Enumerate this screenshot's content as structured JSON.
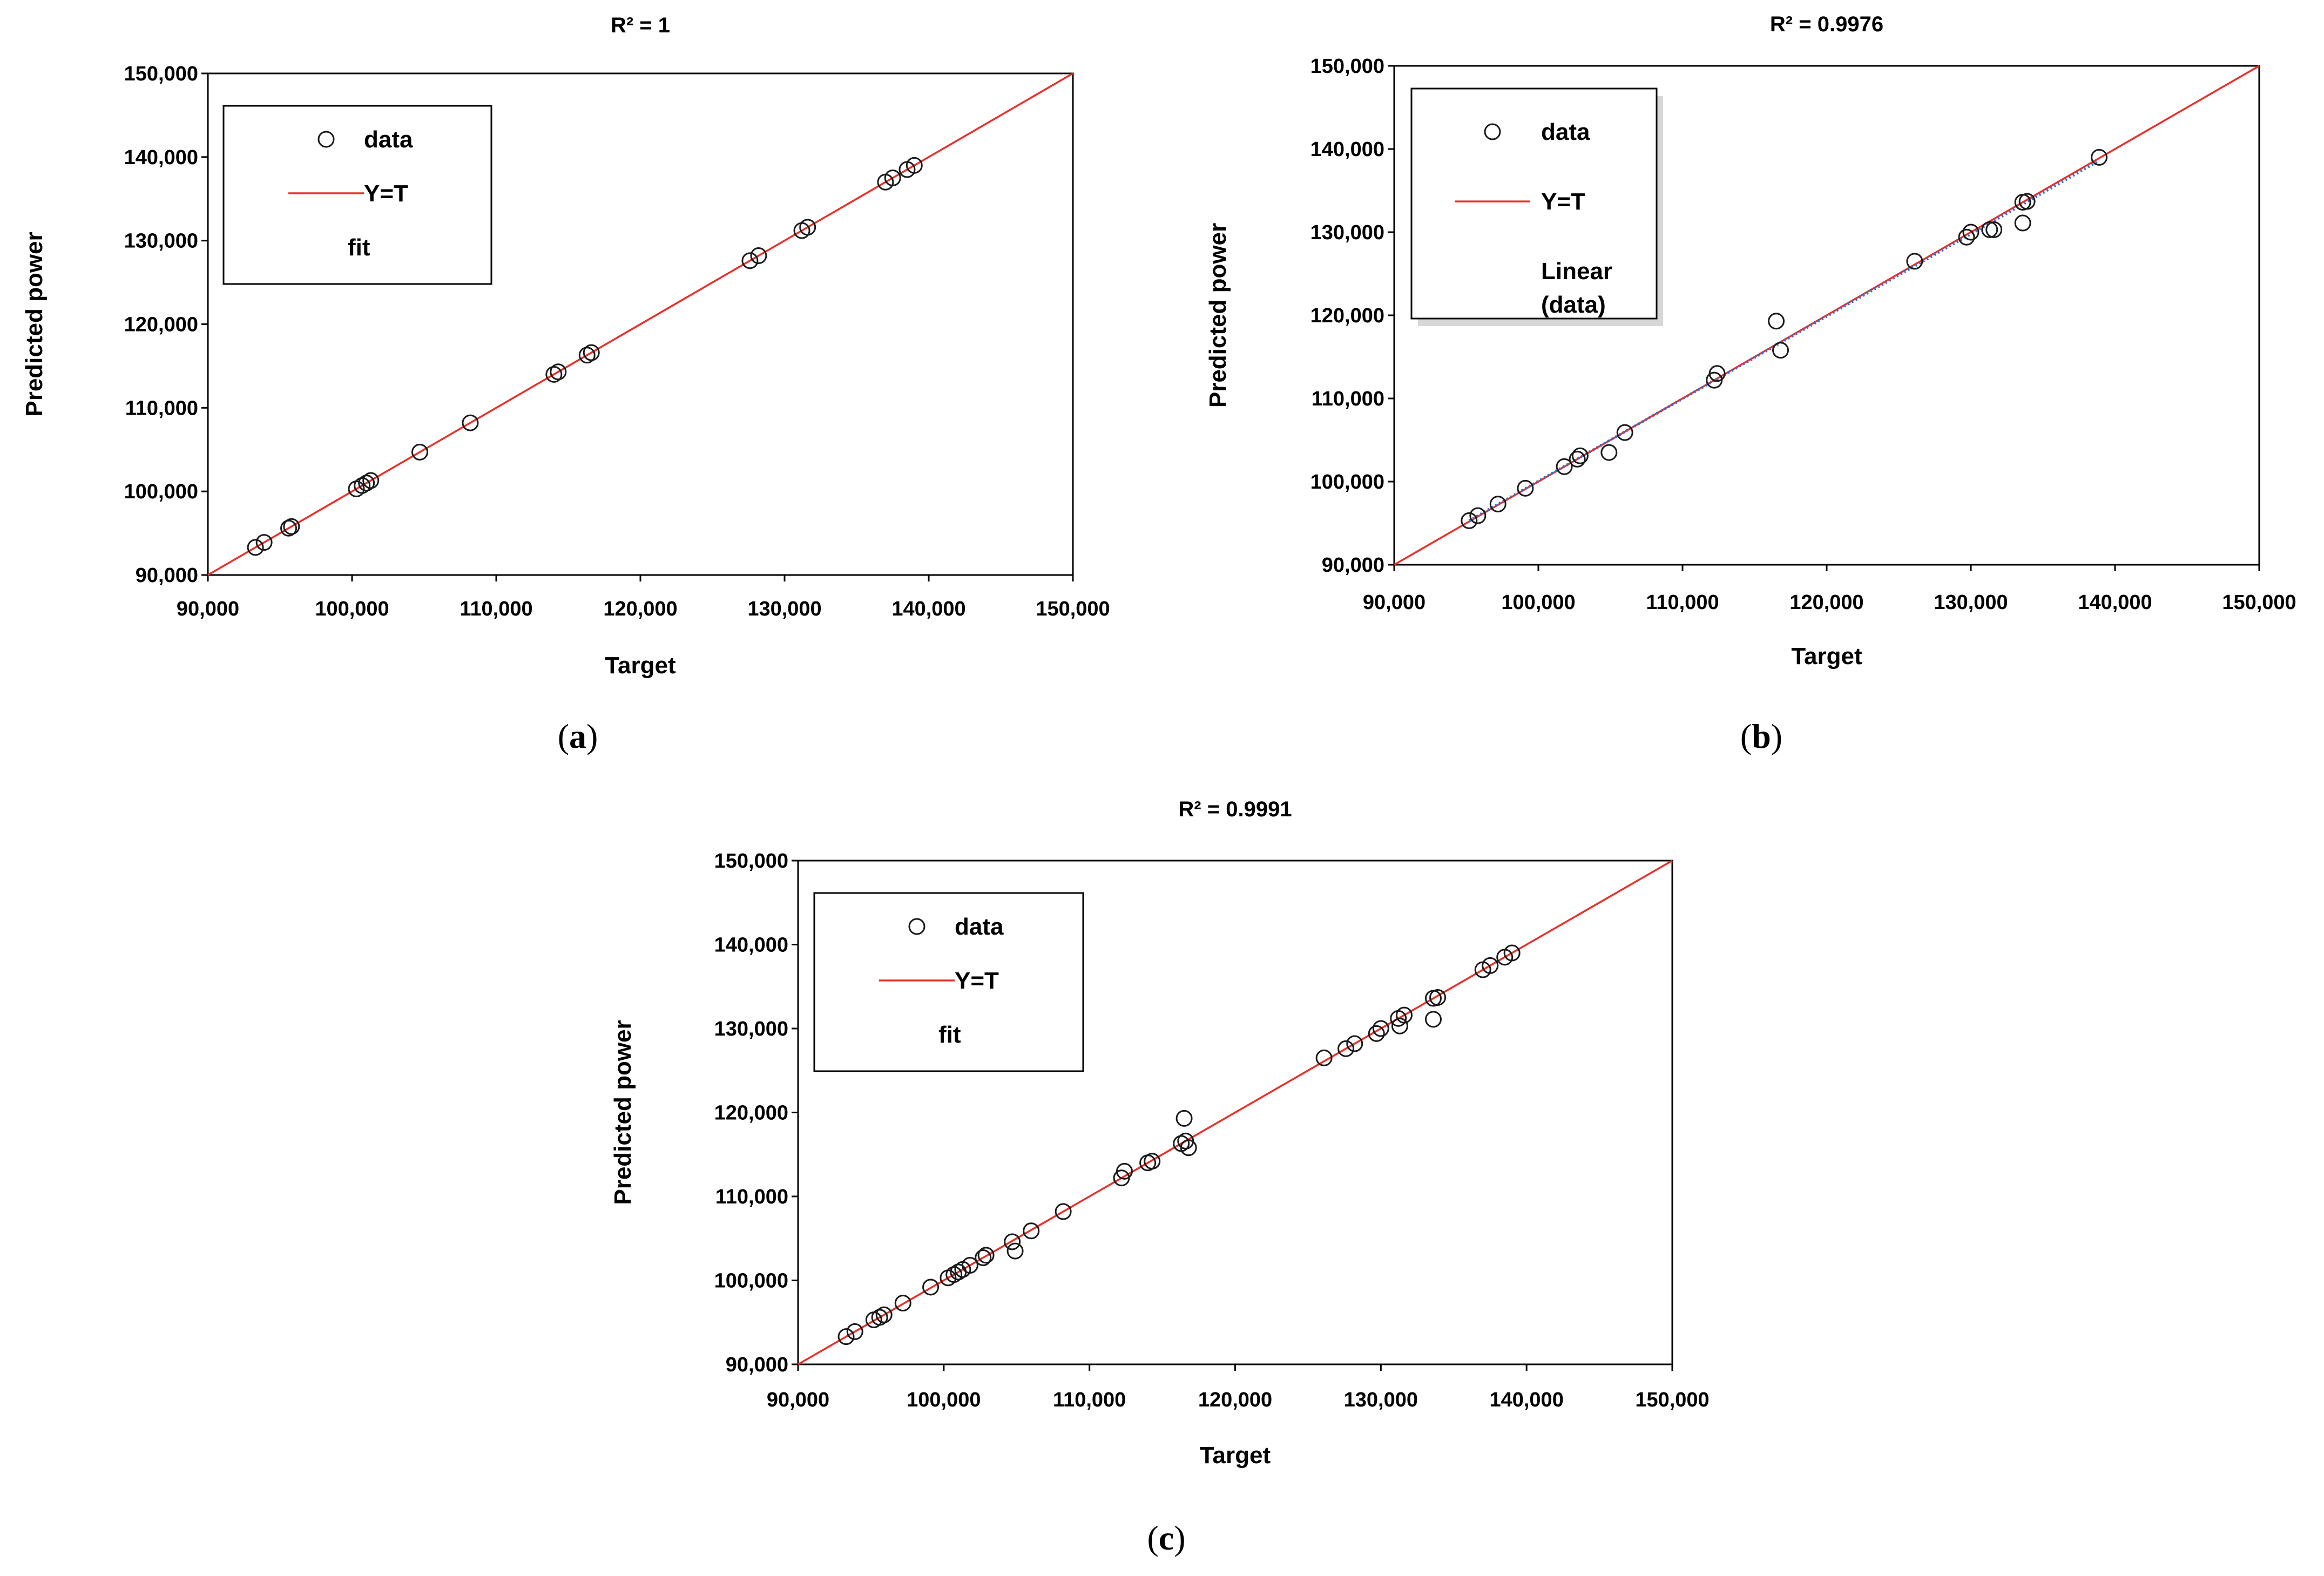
{
  "colors": {
    "identity_line": "#e8312b",
    "fit_line": "#2f6fd1",
    "marker": "#1a1a1a",
    "frame": "#000000"
  },
  "axis_tick_labels": [
    "90,000",
    "100,000",
    "110,000",
    "120,000",
    "130,000",
    "140,000",
    "150,000"
  ],
  "chart_data": [
    {
      "id": "a",
      "type": "scatter",
      "title": "R² = 1",
      "xlabel": "Target",
      "ylabel": "Predicted power",
      "xlim": [
        90000,
        150000
      ],
      "ylim": [
        90000,
        150000
      ],
      "ticks": [
        90000,
        100000,
        110000,
        120000,
        130000,
        140000,
        150000
      ],
      "legend": {
        "position": "top-left",
        "entries": [
          {
            "label": "data",
            "kind": "marker"
          },
          {
            "label": "Y=T",
            "kind": "line"
          },
          {
            "label": "fit",
            "kind": "none"
          }
        ]
      },
      "series": [
        {
          "name": "data",
          "kind": "scatter",
          "points": [
            [
              93300,
              93300
            ],
            [
              93900,
              93900
            ],
            [
              95600,
              95600
            ],
            [
              95800,
              95800
            ],
            [
              100300,
              100300
            ],
            [
              100700,
              100700
            ],
            [
              101000,
              101000
            ],
            [
              101300,
              101300
            ],
            [
              104700,
              104700
            ],
            [
              108200,
              108200
            ],
            [
              114000,
              114000
            ],
            [
              114300,
              114300
            ],
            [
              116300,
              116300
            ],
            [
              116600,
              116600
            ],
            [
              127600,
              127600
            ],
            [
              128200,
              128200
            ],
            [
              131200,
              131200
            ],
            [
              131600,
              131600
            ],
            [
              137000,
              137000
            ],
            [
              137500,
              137500
            ],
            [
              138500,
              138500
            ],
            [
              139000,
              139000
            ]
          ]
        },
        {
          "name": "Y=T",
          "kind": "line",
          "points": [
            [
              90000,
              90000
            ],
            [
              150000,
              150000
            ]
          ]
        }
      ],
      "caption": "a"
    },
    {
      "id": "b",
      "type": "scatter",
      "title": "R² = 0.9976",
      "xlabel": "Target",
      "ylabel": "Predicted power",
      "xlim": [
        90000,
        150000
      ],
      "ylim": [
        90000,
        150000
      ],
      "ticks": [
        90000,
        100000,
        110000,
        120000,
        130000,
        140000,
        150000
      ],
      "legend": {
        "position": "top-left",
        "entries": [
          {
            "label": "data",
            "kind": "marker"
          },
          {
            "label": "Y=T",
            "kind": "line"
          },
          {
            "label": "Linear",
            "label2": "(data)",
            "kind": "none"
          }
        ]
      },
      "series": [
        {
          "name": "data",
          "kind": "scatter",
          "points": [
            [
              95200,
              95300
            ],
            [
              95800,
              95900
            ],
            [
              97200,
              97300
            ],
            [
              99100,
              99200
            ],
            [
              101800,
              101800
            ],
            [
              102700,
              102700
            ],
            [
              102900,
              103100
            ],
            [
              104900,
              103500
            ],
            [
              106000,
              105900
            ],
            [
              112200,
              112200
            ],
            [
              112400,
              113000
            ],
            [
              116500,
              119300
            ],
            [
              116800,
              115800
            ],
            [
              126100,
              126500
            ],
            [
              129700,
              129400
            ],
            [
              130000,
              130000
            ],
            [
              131300,
              130300
            ],
            [
              131600,
              130300
            ],
            [
              133600,
              131100
            ],
            [
              133600,
              133600
            ],
            [
              133900,
              133700
            ],
            [
              138900,
              139000
            ]
          ]
        },
        {
          "name": "Y=T",
          "kind": "line",
          "points": [
            [
              90000,
              90000
            ],
            [
              150000,
              150000
            ]
          ]
        },
        {
          "name": "Linear (data)",
          "kind": "dotted-line",
          "points": [
            [
              95200,
              95300
            ],
            [
              138900,
              138600
            ]
          ]
        }
      ],
      "caption": "b"
    },
    {
      "id": "c",
      "type": "scatter",
      "title": "R² = 0.9991",
      "xlabel": "Target",
      "ylabel": "Predicted power",
      "xlim": [
        90000,
        150000
      ],
      "ylim": [
        90000,
        150000
      ],
      "ticks": [
        90000,
        100000,
        110000,
        120000,
        130000,
        140000,
        150000
      ],
      "legend": {
        "position": "top-left",
        "entries": [
          {
            "label": "data",
            "kind": "marker"
          },
          {
            "label": "Y=T",
            "kind": "line"
          },
          {
            "label": "fit",
            "kind": "none"
          }
        ]
      },
      "series": [
        {
          "name": "data",
          "kind": "scatter",
          "points": [
            [
              93300,
              93300
            ],
            [
              93900,
              93900
            ],
            [
              95200,
              95300
            ],
            [
              95600,
              95600
            ],
            [
              95900,
              95900
            ],
            [
              97200,
              97300
            ],
            [
              99100,
              99200
            ],
            [
              100300,
              100300
            ],
            [
              100700,
              100700
            ],
            [
              101000,
              101000
            ],
            [
              101300,
              101300
            ],
            [
              101800,
              101800
            ],
            [
              102700,
              102700
            ],
            [
              102900,
              103000
            ],
            [
              104700,
              104600
            ],
            [
              104900,
              103500
            ],
            [
              106000,
              105900
            ],
            [
              108200,
              108200
            ],
            [
              112200,
              112200
            ],
            [
              112400,
              113000
            ],
            [
              114000,
              114000
            ],
            [
              114300,
              114200
            ],
            [
              116300,
              116300
            ],
            [
              116500,
              119300
            ],
            [
              116600,
              116600
            ],
            [
              116800,
              115800
            ],
            [
              126100,
              126500
            ],
            [
              127600,
              127600
            ],
            [
              128200,
              128200
            ],
            [
              129700,
              129400
            ],
            [
              130000,
              130000
            ],
            [
              131200,
              131200
            ],
            [
              131300,
              130300
            ],
            [
              131600,
              131600
            ],
            [
              133600,
              131100
            ],
            [
              133600,
              133600
            ],
            [
              133900,
              133700
            ],
            [
              137000,
              137000
            ],
            [
              137500,
              137500
            ],
            [
              138500,
              138500
            ],
            [
              139000,
              139000
            ]
          ]
        },
        {
          "name": "Y=T",
          "kind": "line",
          "points": [
            [
              90000,
              90000
            ],
            [
              150000,
              150000
            ]
          ]
        }
      ],
      "caption": "c"
    }
  ]
}
